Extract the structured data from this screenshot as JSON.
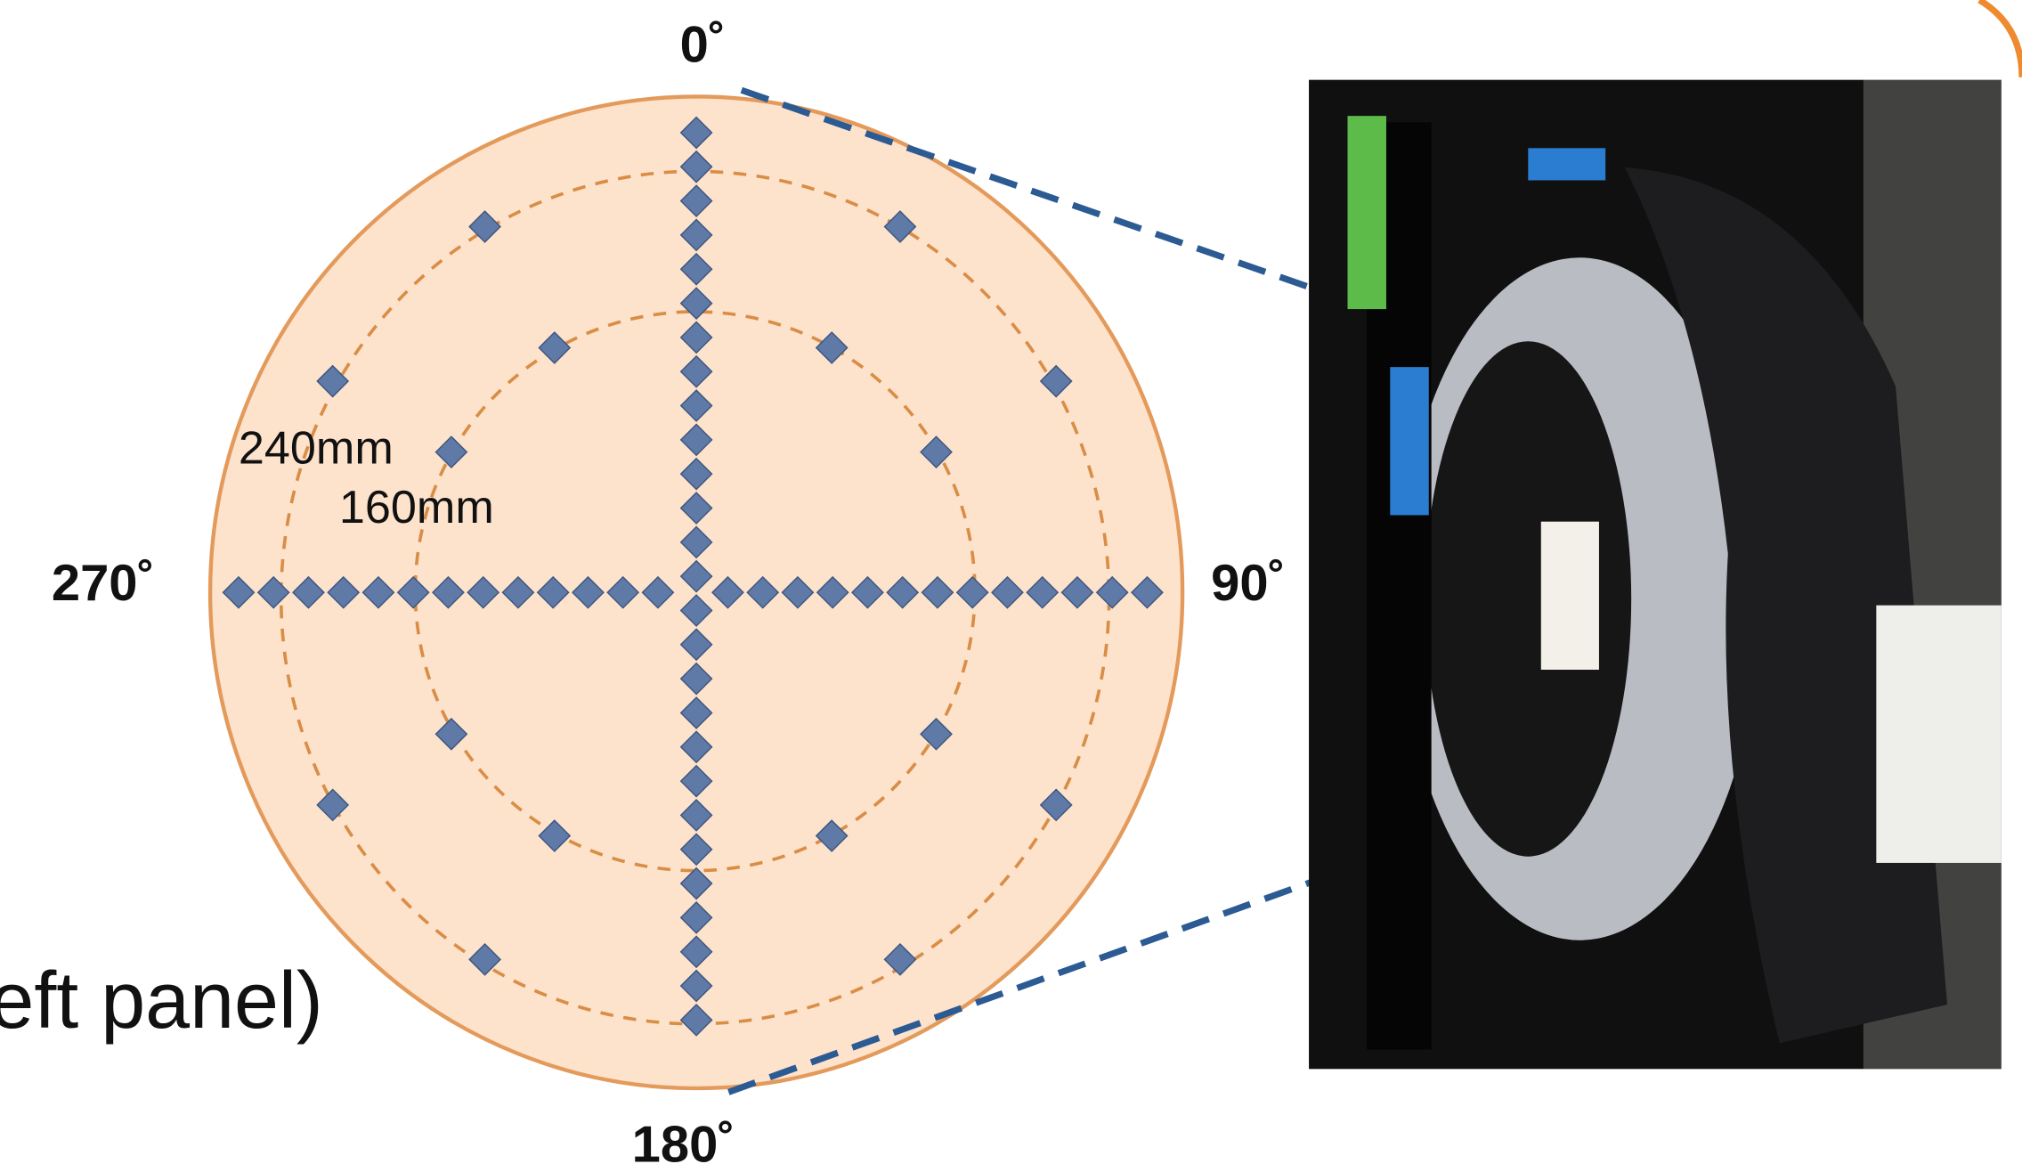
{
  "labels": {
    "top": "0˚",
    "right": "90˚",
    "bottom": "180˚",
    "left": "270˚"
  },
  "radii": {
    "outer": "240mm",
    "inner": "160mm"
  },
  "caption": "eft panel)"
}
